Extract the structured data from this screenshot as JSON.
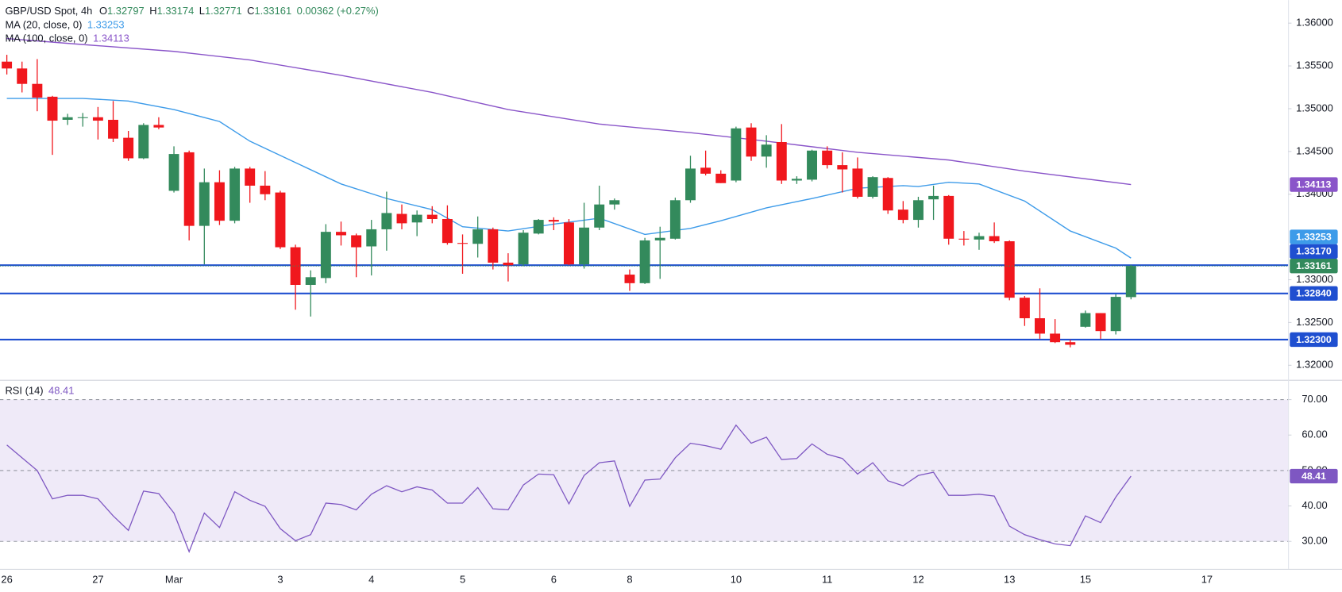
{
  "chart_data": [
    {
      "type": "candlestick",
      "title": "GBP/USD Spot, 4h",
      "ohlc_labels": [
        "O",
        "H",
        "L",
        "C"
      ],
      "change": "0.00362 (+0.27%)",
      "up_color": "#338a5c",
      "down_color": "#f0171d",
      "x": [
        0,
        1,
        2,
        3,
        4,
        5,
        6,
        7,
        8,
        9,
        10,
        11,
        12,
        13,
        14,
        15,
        16,
        17,
        18,
        19,
        20,
        21,
        22,
        23,
        24,
        25,
        26,
        27,
        28,
        29,
        30,
        31,
        32,
        33,
        34,
        35,
        36,
        37,
        38,
        39,
        40,
        41,
        42,
        43,
        44,
        45,
        46,
        47,
        48,
        49,
        50,
        51,
        52,
        53,
        54,
        55,
        56,
        57,
        58,
        59,
        60,
        61,
        62,
        63,
        64,
        65,
        66,
        67,
        68,
        69,
        70,
        71,
        72,
        73,
        74
      ],
      "open": [
        1.3555,
        1.3547,
        1.3529,
        1.3514,
        1.3487,
        1.349,
        1.349,
        1.3487,
        1.3466,
        1.3442,
        1.3481,
        1.3404,
        1.3449,
        1.3363,
        1.3414,
        1.3369,
        1.343,
        1.341,
        1.3402,
        1.3338,
        1.3294,
        1.3302,
        1.3356,
        1.3352,
        1.3339,
        1.3359,
        1.3377,
        1.3367,
        1.3376,
        1.3371,
        1.3343,
        1.3342,
        1.3359,
        1.332,
        1.3318,
        1.3354,
        1.337,
        1.3367,
        1.3318,
        1.3361,
        1.3388,
        1.3306,
        1.3296,
        1.3346,
        1.3348,
        1.3393,
        1.3431,
        1.3424,
        1.3416,
        1.3478,
        1.3444,
        1.3461,
        1.3416,
        1.3417,
        1.3451,
        1.3434,
        1.343,
        1.3397,
        1.3419,
        1.3382,
        1.337,
        1.3394,
        1.3398,
        1.3348,
        1.3347,
        1.3351,
        1.3345,
        1.3279,
        1.3255,
        1.3237,
        1.3227,
        1.3245,
        1.3261,
        1.324,
        1.32797
      ],
      "high": [
        1.3563,
        1.3555,
        1.3558,
        1.3515,
        1.3494,
        1.3495,
        1.3502,
        1.3509,
        1.3474,
        1.3483,
        1.349,
        1.3456,
        1.3451,
        1.343,
        1.3428,
        1.3432,
        1.3432,
        1.3427,
        1.3404,
        1.3341,
        1.3311,
        1.3365,
        1.3368,
        1.3354,
        1.337,
        1.3403,
        1.3388,
        1.3381,
        1.3386,
        1.3387,
        1.3353,
        1.3374,
        1.3361,
        1.3331,
        1.3358,
        1.3371,
        1.3373,
        1.3371,
        1.339,
        1.341,
        1.3395,
        1.3312,
        1.3349,
        1.3362,
        1.3396,
        1.3445,
        1.3451,
        1.3428,
        1.3479,
        1.3483,
        1.3469,
        1.3482,
        1.3421,
        1.3452,
        1.3456,
        1.3449,
        1.3443,
        1.3421,
        1.342,
        1.3392,
        1.3397,
        1.341,
        1.3399,
        1.3357,
        1.3355,
        1.3367,
        1.3346,
        1.3281,
        1.329,
        1.3254,
        1.323,
        1.3264,
        1.3261,
        1.3283,
        1.33174
      ],
      "low": [
        1.354,
        1.3519,
        1.3497,
        1.3446,
        1.3481,
        1.3479,
        1.3464,
        1.3461,
        1.3439,
        1.3441,
        1.3476,
        1.3402,
        1.3346,
        1.3318,
        1.3364,
        1.3366,
        1.339,
        1.3393,
        1.3336,
        1.3265,
        1.3257,
        1.3296,
        1.334,
        1.3303,
        1.3305,
        1.3334,
        1.3359,
        1.3351,
        1.3366,
        1.3341,
        1.3307,
        1.3326,
        1.3312,
        1.3298,
        1.3316,
        1.3353,
        1.3358,
        1.3317,
        1.3313,
        1.3358,
        1.3382,
        1.3287,
        1.3295,
        1.3301,
        1.3347,
        1.339,
        1.3422,
        1.3413,
        1.3414,
        1.3439,
        1.3431,
        1.3412,
        1.3412,
        1.3415,
        1.343,
        1.3402,
        1.3395,
        1.3395,
        1.3377,
        1.3366,
        1.3361,
        1.337,
        1.3341,
        1.334,
        1.3335,
        1.3343,
        1.3276,
        1.3246,
        1.3231,
        1.3226,
        1.3221,
        1.3244,
        1.3231,
        1.3236,
        1.32771
      ],
      "close": [
        1.3547,
        1.3529,
        1.3513,
        1.3486,
        1.349,
        1.349,
        1.3486,
        1.3465,
        1.3442,
        1.3481,
        1.3478,
        1.3447,
        1.3363,
        1.3414,
        1.3369,
        1.343,
        1.341,
        1.34,
        1.3338,
        1.3294,
        1.3303,
        1.3356,
        1.3352,
        1.3338,
        1.3359,
        1.3378,
        1.3366,
        1.3376,
        1.3371,
        1.3343,
        1.3342,
        1.3359,
        1.332,
        1.3317,
        1.3355,
        1.337,
        1.3368,
        1.3318,
        1.3361,
        1.3388,
        1.3393,
        1.3296,
        1.3346,
        1.3349,
        1.3393,
        1.343,
        1.3424,
        1.3413,
        1.3477,
        1.3444,
        1.3458,
        1.3416,
        1.3418,
        1.3451,
        1.3434,
        1.3429,
        1.3397,
        1.342,
        1.3381,
        1.337,
        1.3393,
        1.3398,
        1.3348,
        1.3347,
        1.3351,
        1.3345,
        1.3279,
        1.3255,
        1.3237,
        1.3227,
        1.3224,
        1.3261,
        1.324,
        1.328,
        1.33161
      ],
      "series": [
        {
          "name": "MA (20, close, 0)",
          "color": "#3d9be9",
          "x": [
            0,
            5,
            8,
            11,
            14,
            16,
            19,
            22,
            25,
            28,
            30,
            33,
            36,
            39,
            42,
            45,
            47,
            50,
            53,
            56,
            59,
            60,
            62,
            64,
            67,
            70,
            73,
            74
          ],
          "values": [
            1.3512,
            1.3512,
            1.3509,
            1.3499,
            1.3485,
            1.3462,
            1.3437,
            1.3412,
            1.3395,
            1.3382,
            1.3362,
            1.3357,
            1.3365,
            1.3372,
            1.3353,
            1.336,
            1.3369,
            1.3384,
            1.3395,
            1.3407,
            1.341,
            1.3409,
            1.3414,
            1.3412,
            1.3392,
            1.3357,
            1.3337,
            1.33253
          ]
        },
        {
          "name": "MA (100, close, 0)",
          "color": "#8a55c9",
          "x": [
            0,
            5,
            11,
            16,
            22,
            28,
            33,
            39,
            45,
            50,
            56,
            62,
            67,
            74
          ],
          "values": [
            1.3582,
            1.3575,
            1.3567,
            1.3557,
            1.3539,
            1.3519,
            1.3499,
            1.3482,
            1.3472,
            1.3462,
            1.3449,
            1.344,
            1.3427,
            1.34113
          ]
        }
      ],
      "levels": [
        {
          "value": 1.3317,
          "label": "1.33170"
        },
        {
          "value": 1.3284,
          "label": "1.32840"
        },
        {
          "value": 1.323,
          "label": "1.32300"
        }
      ],
      "level_color": "#1f4fd0",
      "ylim": [
        1.3184,
        1.3627
      ],
      "yticks": [
        {
          "value": 1.36,
          "label": "1.36000"
        },
        {
          "value": 1.355,
          "label": "1.35500"
        },
        {
          "value": 1.35,
          "label": "1.35000"
        },
        {
          "value": 1.345,
          "label": "1.34500"
        },
        {
          "value": 1.34,
          "label": "1.34000"
        },
        {
          "value": 1.33,
          "label": "1.33000"
        },
        {
          "value": 1.325,
          "label": "1.32500"
        },
        {
          "value": 1.32,
          "label": "1.32000"
        }
      ],
      "xlim": [
        -0.45,
        84.34
      ],
      "xticks": [
        {
          "value": 0,
          "label": "26"
        },
        {
          "value": 6,
          "label": "27"
        },
        {
          "value": 11,
          "label": "Mar"
        },
        {
          "value": 18,
          "label": "3"
        },
        {
          "value": 24,
          "label": "4"
        },
        {
          "value": 30,
          "label": "5"
        },
        {
          "value": 36,
          "label": "6"
        },
        {
          "value": 41,
          "label": "8"
        },
        {
          "value": 48,
          "label": "10"
        },
        {
          "value": 54,
          "label": "11"
        },
        {
          "value": 60,
          "label": "12"
        },
        {
          "value": 66,
          "label": "13"
        },
        {
          "value": 71,
          "label": "15"
        },
        {
          "value": 79,
          "label": "17"
        }
      ],
      "grid": false
    },
    {
      "type": "line",
      "title": "RSI (14)",
      "color": "#7e57c2",
      "values": [
        57.2,
        53.6,
        50,
        42,
        43,
        43,
        42,
        37.2,
        33.1,
        44.2,
        43.5,
        38,
        27.1,
        38,
        33.9,
        44,
        41.6,
        39.9,
        33.6,
        30.2,
        31.9,
        40.8,
        40.4,
        38.9,
        43.3,
        45.7,
        44,
        45.4,
        44.5,
        40.8,
        40.8,
        45.2,
        39.2,
        38.9,
        45.9,
        49,
        48.8,
        40.6,
        48.6,
        52.2,
        52.7,
        39.9,
        47.3,
        47.6,
        53.6,
        57.7,
        57,
        56,
        62.8,
        57.7,
        59.4,
        53.1,
        53.4,
        57.5,
        54.6,
        53.4,
        49,
        52.2,
        47.1,
        45.7,
        48.6,
        49.5,
        43,
        43,
        43.3,
        42.8,
        34.3,
        31.9,
        30.5,
        29.3,
        28.8,
        37.2,
        35.3,
        42.5,
        48.41
      ],
      "ylim": [
        22.5,
        75.1
      ],
      "yticks": [
        {
          "value": 70,
          "label": "70.00"
        },
        {
          "value": 60,
          "label": "60.00"
        },
        {
          "value": 50,
          "label": "50.00"
        },
        {
          "value": 40,
          "label": "40.00"
        },
        {
          "value": 30,
          "label": "30.00"
        }
      ],
      "band": [
        30,
        70
      ],
      "band_color": "#efeaf8",
      "dashed_levels": [
        30,
        50,
        70
      ]
    }
  ]
}
